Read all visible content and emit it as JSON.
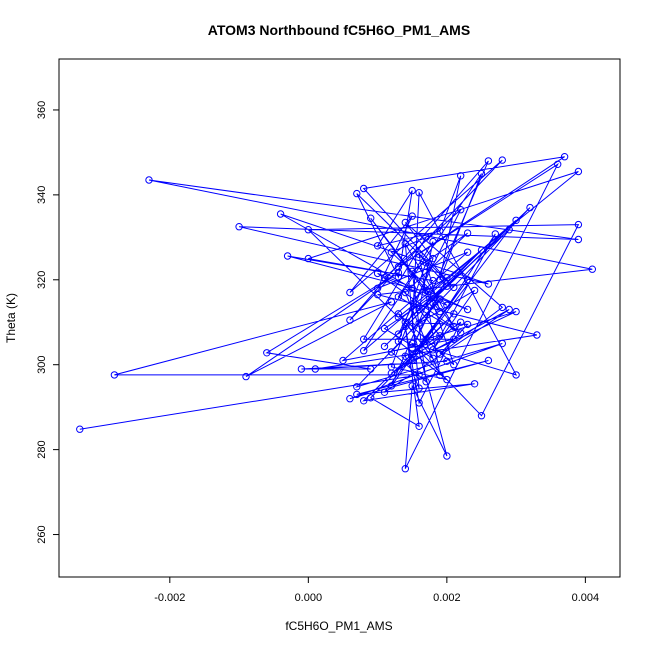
{
  "chart_data": {
    "type": "scatter",
    "title": "ATOM3 Northbound fC5H6O_PM1_AMS",
    "xlabel": "fC5H6O_PM1_AMS",
    "ylabel": "Theta (K)",
    "xlim": [
      -0.0036,
      0.0045
    ],
    "ylim": [
      250,
      372
    ],
    "x_ticks": [
      -0.002,
      0.0,
      0.002,
      0.004
    ],
    "x_tick_labels": [
      "-0.002",
      "0.000",
      "0.002",
      "0.004"
    ],
    "y_ticks": [
      260,
      280,
      300,
      320,
      340,
      360
    ],
    "y_tick_labels": [
      "260",
      "280",
      "300",
      "320",
      "340",
      "360"
    ],
    "connected": true,
    "marker": "open-circle",
    "color": "#0000ff",
    "series": [
      {
        "points": [
          [
            -0.0033,
            284.8
          ],
          [
            0.0016,
            297.6
          ],
          [
            -0.0028,
            297.6
          ],
          [
            0.0012,
            314.8
          ],
          [
            -0.0009,
            297.2
          ],
          [
            0.0013,
            321.7
          ],
          [
            -0.0006,
            302.8
          ],
          [
            0.0009,
            299.0
          ],
          [
            -0.0001,
            299.0
          ],
          [
            0.002,
            300.8
          ],
          [
            0.0001,
            299.0
          ],
          [
            0.0033,
            307.0
          ],
          [
            0.001,
            316.5
          ],
          [
            0.0041,
            322.5
          ],
          [
            -0.0023,
            343.5
          ],
          [
            0.0039,
            329.5
          ],
          [
            -0.001,
            332.5
          ],
          [
            0.0026,
            319.0
          ],
          [
            -0.0004,
            335.5
          ],
          [
            0.0015,
            318.0
          ],
          [
            -0.0003,
            325.6
          ],
          [
            0.0018,
            319.8
          ],
          [
            0.0,
            325.0
          ],
          [
            0.0039,
            345.5
          ],
          [
            0.0013,
            311.2
          ],
          [
            0.0,
            331.8
          ],
          [
            0.0039,
            333.0
          ],
          [
            0.0025,
            288.0
          ],
          [
            0.0015,
            305.0
          ],
          [
            0.003,
            297.6
          ],
          [
            0.0016,
            340.5
          ],
          [
            0.0015,
            309.0
          ],
          [
            0.002,
            278.5
          ],
          [
            0.0015,
            295.0
          ],
          [
            0.0014,
            275.5
          ],
          [
            0.0036,
            347.2
          ],
          [
            0.0013,
            323.0
          ],
          [
            0.0037,
            349.0
          ],
          [
            0.0008,
            341.5
          ],
          [
            0.0021,
            318.2
          ],
          [
            0.0007,
            340.3
          ],
          [
            0.0013,
            320.6
          ],
          [
            0.0015,
            341.0
          ],
          [
            0.001,
            328.0
          ],
          [
            0.0019,
            331.5
          ],
          [
            0.0022,
            344.5
          ],
          [
            0.0019,
            320.0
          ],
          [
            0.0025,
            345.0
          ],
          [
            0.0008,
            303.3
          ],
          [
            0.003,
            334.0
          ],
          [
            0.0011,
            304.3
          ],
          [
            0.0032,
            337.0
          ],
          [
            0.0007,
            294.8
          ],
          [
            0.0028,
            305.0
          ],
          [
            0.0006,
            292.0
          ],
          [
            0.0026,
            301.0
          ],
          [
            0.0007,
            293.0
          ],
          [
            0.0024,
            295.5
          ],
          [
            0.0008,
            291.5
          ],
          [
            0.0021,
            312.0
          ],
          [
            0.0009,
            292.2
          ],
          [
            0.0016,
            285.5
          ],
          [
            0.0014,
            309.0
          ],
          [
            0.0016,
            291.0
          ],
          [
            0.0022,
            310.0
          ],
          [
            0.0012,
            298.0
          ],
          [
            0.0029,
            313.0
          ],
          [
            0.0011,
            293.5
          ],
          [
            0.0023,
            320.0
          ],
          [
            0.0012,
            295.0
          ],
          [
            0.0026,
            348.0
          ],
          [
            0.0006,
            310.5
          ],
          [
            0.0028,
            348.2
          ],
          [
            0.0006,
            317.0
          ],
          [
            0.0015,
            335.0
          ],
          [
            0.001,
            318.0
          ],
          [
            0.0023,
            326.5
          ],
          [
            0.0005,
            301.0
          ],
          [
            0.0021,
            306.0
          ],
          [
            0.0008,
            306.0
          ],
          [
            0.0017,
            330.0
          ],
          [
            0.0012,
            326.5
          ],
          [
            0.002,
            314.0
          ],
          [
            0.0011,
            320.5
          ],
          [
            0.0022,
            336.5
          ],
          [
            0.0013,
            307.2
          ],
          [
            0.0025,
            327.0
          ],
          [
            0.0014,
            310.0
          ],
          [
            0.0029,
            331.8
          ],
          [
            0.0017,
            306.0
          ],
          [
            0.003,
            312.5
          ],
          [
            0.0015,
            301.0
          ],
          [
            0.0027,
            330.8
          ],
          [
            0.0018,
            303.5
          ],
          [
            0.0024,
            317.5
          ],
          [
            0.0016,
            309.8
          ],
          [
            0.0023,
            309.5
          ],
          [
            0.0019,
            302.5
          ],
          [
            0.0028,
            313.5
          ],
          [
            0.0014,
            333.5
          ],
          [
            0.0018,
            325.0
          ],
          [
            0.0012,
            299.5
          ],
          [
            0.002,
            296.5
          ],
          [
            0.0013,
            305.5
          ],
          [
            0.0017,
            324.0
          ],
          [
            0.0019,
            312.5
          ],
          [
            0.0009,
            334.5
          ],
          [
            0.0021,
            309.0
          ],
          [
            0.0014,
            328.5
          ],
          [
            0.0016,
            294.5
          ],
          [
            0.0014,
            302.0
          ],
          [
            0.0019,
            306.8
          ],
          [
            0.0016,
            313.0
          ],
          [
            0.0018,
            329.0
          ],
          [
            0.0013,
            316.0
          ],
          [
            0.0022,
            307.5
          ],
          [
            0.001,
            321.5
          ],
          [
            0.0023,
            313.0
          ],
          [
            0.0017,
            317.5
          ],
          [
            0.002,
            320.5
          ],
          [
            0.0015,
            304.0
          ],
          [
            0.0018,
            314.5
          ],
          [
            0.0021,
            300.0
          ],
          [
            0.0013,
            312.0
          ],
          [
            0.0018,
            301.5
          ],
          [
            0.0011,
            308.5
          ],
          [
            0.002,
            318.5
          ],
          [
            0.0016,
            326.0
          ],
          [
            0.0019,
            297.5
          ],
          [
            0.0014,
            317.0
          ],
          [
            0.0023,
            331.0
          ],
          [
            0.0015,
            322.0
          ],
          [
            0.0017,
            296.0
          ],
          [
            0.0012,
            303.0
          ],
          [
            0.0019,
            315.5
          ]
        ]
      }
    ]
  }
}
